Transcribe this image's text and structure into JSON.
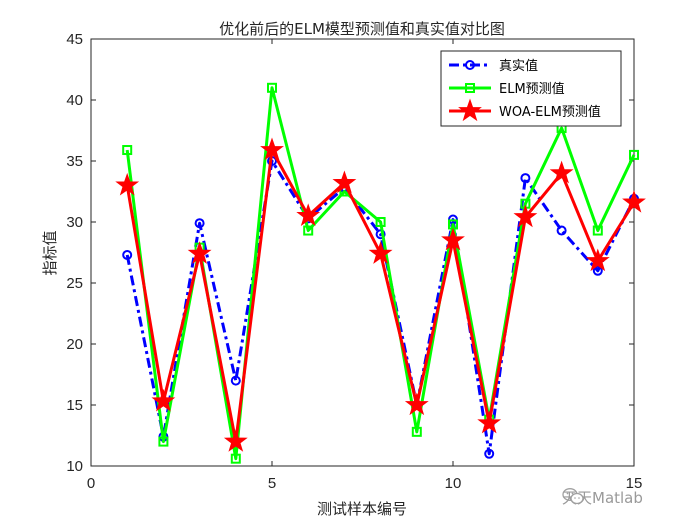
{
  "chart_data": {
    "type": "line",
    "title": "优化前后的ELM模型预测值和真实值对比图",
    "xlabel": "测试样本编号",
    "ylabel": "指标值",
    "xlim": [
      0,
      15
    ],
    "ylim": [
      10,
      45
    ],
    "xticks": [
      0,
      5,
      10,
      15
    ],
    "yticks": [
      10,
      15,
      20,
      25,
      30,
      35,
      40,
      45
    ],
    "grid": false,
    "legend_position": "top-right",
    "x": [
      1,
      2,
      3,
      4,
      5,
      6,
      7,
      8,
      9,
      10,
      11,
      12,
      13,
      14,
      15
    ],
    "series": [
      {
        "name": "真实值",
        "color": "#0000ff",
        "line_style": "dash-dot",
        "marker": "circle",
        "values": [
          27.3,
          12.4,
          29.9,
          17.0,
          35.0,
          30.3,
          32.8,
          29.0,
          15.0,
          30.2,
          11.0,
          33.6,
          29.3,
          26.0,
          31.9
        ]
      },
      {
        "name": "ELM预测值",
        "color": "#00ff00",
        "line_style": "solid",
        "marker": "square",
        "values": [
          35.9,
          12.0,
          27.9,
          10.6,
          41.0,
          29.3,
          32.5,
          30.0,
          12.8,
          29.8,
          13.8,
          31.5,
          37.7,
          29.3,
          35.5
        ]
      },
      {
        "name": "WOA-ELM预测值",
        "color": "#ff0000",
        "line_style": "solid",
        "marker": "pentagram",
        "values": [
          33.0,
          15.3,
          27.4,
          12.0,
          35.9,
          30.5,
          33.2,
          27.4,
          15.0,
          28.5,
          13.5,
          30.4,
          34.0,
          26.8,
          31.6
        ]
      }
    ]
  },
  "watermark": {
    "icon": "wechat-icon",
    "text": "天天Matlab"
  }
}
